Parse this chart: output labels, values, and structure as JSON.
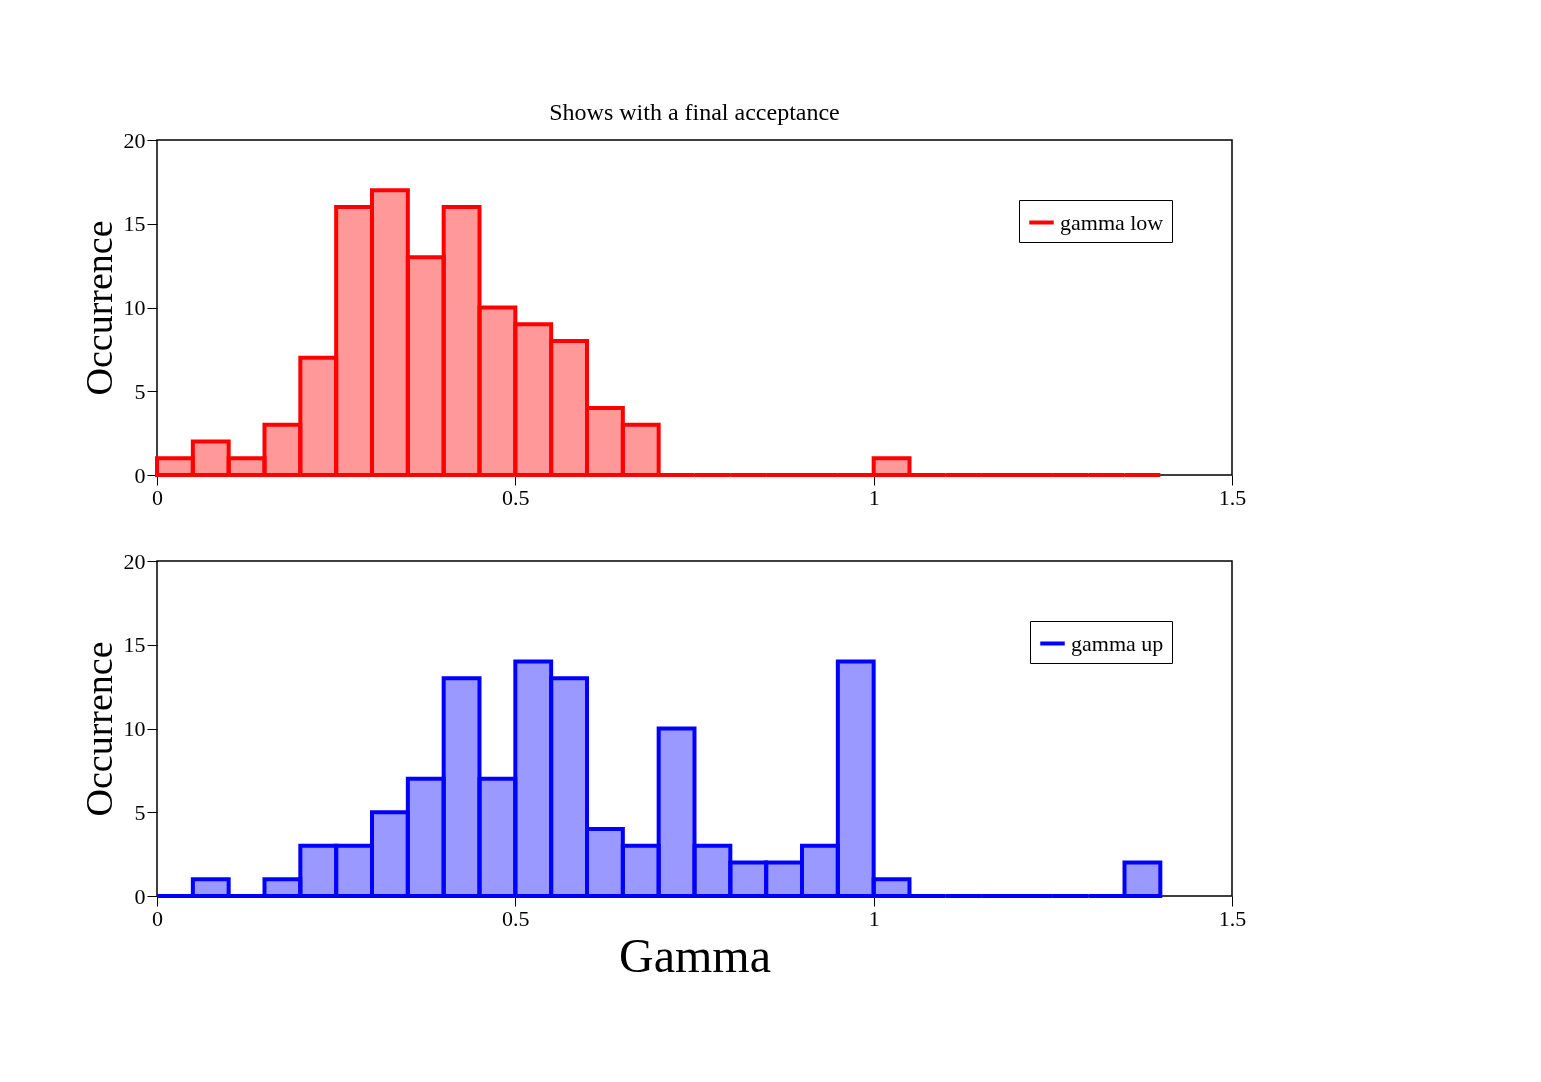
{
  "chart_data": [
    {
      "type": "histogram",
      "title": "Shows with a final acceptance",
      "ylabel": "Occurrence",
      "bins": [
        0,
        0.05,
        0.1,
        0.15,
        0.2,
        0.25,
        0.3,
        0.35,
        0.4,
        0.45,
        0.5,
        0.55,
        0.6,
        0.65,
        0.7,
        0.75,
        0.8,
        0.85,
        0.9,
        0.95,
        1.0,
        1.05,
        1.1,
        1.15,
        1.2,
        1.25,
        1.3,
        1.35,
        1.4
      ],
      "series": [
        {
          "name": "gamma low",
          "color": "#ff0000",
          "values": [
            1,
            2,
            1,
            3,
            7,
            16,
            17,
            13,
            16,
            10,
            9,
            8,
            4,
            3,
            0,
            0,
            0,
            0,
            0,
            0,
            1,
            0,
            0,
            0,
            0,
            0,
            0,
            0
          ]
        }
      ],
      "xlim": [
        0,
        1.5
      ],
      "xticks": [
        0,
        0.5,
        1,
        1.5
      ],
      "ylim": [
        0,
        20
      ],
      "yticks": [
        0,
        5,
        10,
        15,
        20
      ],
      "grid": false,
      "legend": "top right"
    },
    {
      "type": "histogram",
      "xlabel": "Gamma",
      "ylabel": "Occurrence",
      "bins": [
        0,
        0.05,
        0.1,
        0.15,
        0.2,
        0.25,
        0.3,
        0.35,
        0.4,
        0.45,
        0.5,
        0.55,
        0.6,
        0.65,
        0.7,
        0.75,
        0.8,
        0.85,
        0.9,
        0.95,
        1.0,
        1.05,
        1.1,
        1.15,
        1.2,
        1.25,
        1.3,
        1.35,
        1.4
      ],
      "series": [
        {
          "name": "gamma up",
          "color": "#0000ff",
          "values": [
            0,
            1,
            0,
            1,
            3,
            3,
            5,
            7,
            13,
            7,
            14,
            13,
            4,
            3,
            10,
            3,
            2,
            2,
            3,
            14,
            1,
            0,
            0,
            0,
            0,
            0,
            0,
            2
          ]
        }
      ],
      "xlim": [
        0,
        1.5
      ],
      "xticks": [
        0,
        0.5,
        1,
        1.5
      ],
      "ylim": [
        0,
        20
      ],
      "yticks": [
        0,
        5,
        10,
        15,
        20
      ],
      "grid": false,
      "legend": "top right"
    }
  ]
}
